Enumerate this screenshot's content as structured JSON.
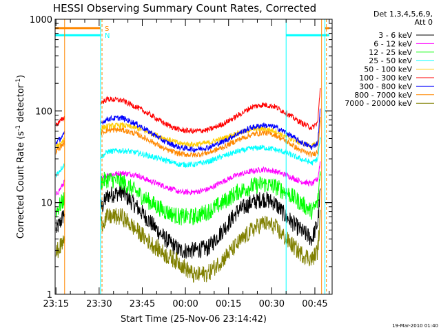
{
  "chart_data": {
    "type": "line",
    "title": "HESSI Observing Summary Count Rates, Corrected",
    "xlabel": "Start Time (25-Nov-06 23:14:42)",
    "ylabel": "Corrected Count Rate (s",
    "ylabel_sup1": "-1",
    "ylabel_mid": " detector",
    "ylabel_sup2": "-1",
    "ylabel_end": ")",
    "yscale": "log",
    "ylim": [
      1,
      1000
    ],
    "yticks": [
      {
        "v": 1,
        "label": "1"
      },
      {
        "v": 10,
        "label": "10"
      },
      {
        "v": 100,
        "label": "100"
      },
      {
        "v": 1000,
        "label": "1000"
      }
    ],
    "xlim": [
      "23:14:42",
      "00:51:00"
    ],
    "xticks": [
      "23:15",
      "23:30",
      "23:45",
      "00:00",
      "00:15",
      "00:30",
      "00:45"
    ],
    "legend_title": [
      "Det 1,3,4,5,6,9,",
      "Att 0"
    ],
    "legend_placement": "right",
    "series": [
      {
        "name": "3 - 6 keV",
        "color": "#000000",
        "points": [
          [
            "23:15",
            5
          ],
          [
            "23:17",
            6.5
          ],
          [
            "23:18",
            8
          ],
          [
            "23:31",
            9
          ],
          [
            "23:33",
            12
          ],
          [
            "23:38",
            13
          ],
          [
            "23:43",
            9
          ],
          [
            "23:48",
            6
          ],
          [
            "23:53",
            4
          ],
          [
            "23:58",
            3
          ],
          [
            "00:03",
            3
          ],
          [
            "00:08",
            3.2
          ],
          [
            "00:13",
            5
          ],
          [
            "00:18",
            8
          ],
          [
            "00:23",
            10
          ],
          [
            "00:27",
            11
          ],
          [
            "00:31",
            10
          ],
          [
            "00:35",
            7
          ],
          [
            "00:40",
            5
          ],
          [
            "00:44",
            4
          ],
          [
            "00:46",
            6
          ],
          [
            "00:47",
            15
          ]
        ]
      },
      {
        "name": "6 - 12 keV",
        "color": "#ff00ff",
        "points": [
          [
            "23:15",
            12
          ],
          [
            "23:17",
            15
          ],
          [
            "23:18",
            17
          ],
          [
            "23:31",
            18
          ],
          [
            "23:33",
            20
          ],
          [
            "23:38",
            21
          ],
          [
            "23:43",
            20
          ],
          [
            "23:48",
            17
          ],
          [
            "23:53",
            15
          ],
          [
            "23:58",
            13
          ],
          [
            "00:03",
            13
          ],
          [
            "00:08",
            14
          ],
          [
            "00:13",
            17
          ],
          [
            "00:18",
            20
          ],
          [
            "00:23",
            22
          ],
          [
            "00:27",
            23
          ],
          [
            "00:31",
            22
          ],
          [
            "00:35",
            20
          ],
          [
            "00:40",
            17
          ],
          [
            "00:44",
            16
          ],
          [
            "00:46",
            18
          ],
          [
            "00:47",
            30
          ]
        ]
      },
      {
        "name": "12 - 25 keV",
        "color": "#00ff00",
        "points": [
          [
            "23:15",
            8
          ],
          [
            "23:17",
            10
          ],
          [
            "23:18",
            11
          ],
          [
            "23:31",
            17
          ],
          [
            "23:33",
            18
          ],
          [
            "23:38",
            17
          ],
          [
            "23:43",
            13
          ],
          [
            "23:48",
            10
          ],
          [
            "23:53",
            8
          ],
          [
            "23:58",
            7
          ],
          [
            "00:03",
            7
          ],
          [
            "00:08",
            8
          ],
          [
            "00:13",
            10
          ],
          [
            "00:18",
            13
          ],
          [
            "00:23",
            15
          ],
          [
            "00:27",
            16
          ],
          [
            "00:31",
            15
          ],
          [
            "00:35",
            13
          ],
          [
            "00:40",
            10
          ],
          [
            "00:44",
            8
          ],
          [
            "00:46",
            10
          ],
          [
            "00:47",
            25
          ]
        ]
      },
      {
        "name": "25 - 50 keV",
        "color": "#00ffff",
        "points": [
          [
            "23:15",
            20
          ],
          [
            "23:17",
            24
          ],
          [
            "23:18",
            26
          ],
          [
            "23:31",
            32
          ],
          [
            "23:33",
            36
          ],
          [
            "23:38",
            37
          ],
          [
            "23:43",
            35
          ],
          [
            "23:48",
            32
          ],
          [
            "23:53",
            29
          ],
          [
            "23:58",
            26
          ],
          [
            "00:03",
            26
          ],
          [
            "00:08",
            28
          ],
          [
            "00:13",
            32
          ],
          [
            "00:18",
            36
          ],
          [
            "00:23",
            39
          ],
          [
            "00:27",
            40
          ],
          [
            "00:31",
            38
          ],
          [
            "00:35",
            35
          ],
          [
            "00:40",
            30
          ],
          [
            "00:44",
            27
          ],
          [
            "00:46",
            30
          ],
          [
            "00:47",
            55
          ]
        ]
      },
      {
        "name": "50 - 100 keV",
        "color": "#ffcc00",
        "points": [
          [
            "23:15",
            40
          ],
          [
            "23:17",
            46
          ],
          [
            "23:18",
            50
          ],
          [
            "23:31",
            65
          ],
          [
            "23:33",
            68
          ],
          [
            "23:38",
            70
          ],
          [
            "23:43",
            65
          ],
          [
            "23:48",
            57
          ],
          [
            "23:53",
            50
          ],
          [
            "23:58",
            44
          ],
          [
            "00:03",
            43
          ],
          [
            "00:08",
            45
          ],
          [
            "00:13",
            50
          ],
          [
            "00:18",
            57
          ],
          [
            "00:23",
            63
          ],
          [
            "00:27",
            64
          ],
          [
            "00:31",
            61
          ],
          [
            "00:35",
            52
          ],
          [
            "00:40",
            45
          ],
          [
            "00:44",
            41
          ],
          [
            "00:46",
            45
          ],
          [
            "00:47",
            85
          ]
        ]
      },
      {
        "name": "100 - 300 keV",
        "color": "#ff0000",
        "points": [
          [
            "23:15",
            70
          ],
          [
            "23:17",
            80
          ],
          [
            "23:18",
            85
          ],
          [
            "23:31",
            125
          ],
          [
            "23:33",
            135
          ],
          [
            "23:38",
            130
          ],
          [
            "23:43",
            110
          ],
          [
            "23:48",
            90
          ],
          [
            "23:53",
            72
          ],
          [
            "23:58",
            62
          ],
          [
            "00:03",
            60
          ],
          [
            "00:08",
            62
          ],
          [
            "00:13",
            72
          ],
          [
            "00:18",
            88
          ],
          [
            "00:23",
            110
          ],
          [
            "00:27",
            117
          ],
          [
            "00:31",
            112
          ],
          [
            "00:35",
            95
          ],
          [
            "00:40",
            75
          ],
          [
            "00:44",
            65
          ],
          [
            "00:46",
            75
          ],
          [
            "00:47",
            200
          ]
        ]
      },
      {
        "name": "300 - 800 keV",
        "color": "#0000ff",
        "points": [
          [
            "23:15",
            45
          ],
          [
            "23:17",
            52
          ],
          [
            "23:18",
            56
          ],
          [
            "23:31",
            75
          ],
          [
            "23:33",
            82
          ],
          [
            "23:38",
            84
          ],
          [
            "23:43",
            72
          ],
          [
            "23:48",
            58
          ],
          [
            "23:53",
            46
          ],
          [
            "23:58",
            40
          ],
          [
            "00:03",
            38
          ],
          [
            "00:08",
            40
          ],
          [
            "00:13",
            46
          ],
          [
            "00:18",
            56
          ],
          [
            "00:23",
            66
          ],
          [
            "00:27",
            70
          ],
          [
            "00:31",
            67
          ],
          [
            "00:35",
            58
          ],
          [
            "00:40",
            46
          ],
          [
            "00:44",
            40
          ],
          [
            "00:46",
            45
          ],
          [
            "00:47",
            120
          ]
        ]
      },
      {
        "name": "800 - 7000 keV",
        "color": "#ff8800",
        "points": [
          [
            "23:15",
            36
          ],
          [
            "23:17",
            42
          ],
          [
            "23:18",
            45
          ],
          [
            "23:31",
            58
          ],
          [
            "23:33",
            62
          ],
          [
            "23:38",
            62
          ],
          [
            "23:43",
            56
          ],
          [
            "23:48",
            47
          ],
          [
            "23:53",
            38
          ],
          [
            "23:58",
            34
          ],
          [
            "00:03",
            33
          ],
          [
            "00:08",
            35
          ],
          [
            "00:13",
            40
          ],
          [
            "00:18",
            48
          ],
          [
            "00:23",
            55
          ],
          [
            "00:27",
            58
          ],
          [
            "00:31",
            55
          ],
          [
            "00:35",
            47
          ],
          [
            "00:40",
            37
          ],
          [
            "00:44",
            33
          ],
          [
            "00:46",
            36
          ],
          [
            "00:47",
            95
          ]
        ]
      },
      {
        "name": "7000 - 20000 keV",
        "color": "#808000",
        "points": [
          [
            "23:15",
            2.8
          ],
          [
            "23:17",
            3.5
          ],
          [
            "23:18",
            4
          ],
          [
            "23:31",
            6
          ],
          [
            "23:33",
            7
          ],
          [
            "23:38",
            7
          ],
          [
            "23:43",
            5
          ],
          [
            "23:48",
            3.6
          ],
          [
            "23:53",
            2.7
          ],
          [
            "23:58",
            2.2
          ],
          [
            "00:03",
            1.6
          ],
          [
            "00:08",
            1.7
          ],
          [
            "00:13",
            2.4
          ],
          [
            "00:18",
            3.5
          ],
          [
            "00:23",
            5
          ],
          [
            "00:27",
            6
          ],
          [
            "00:31",
            5.5
          ],
          [
            "00:35",
            4
          ],
          [
            "00:40",
            2.8
          ],
          [
            "00:44",
            2.4
          ],
          [
            "00:46",
            3
          ],
          [
            "00:47",
            8
          ]
        ]
      }
    ],
    "flags": [
      {
        "label": "S",
        "color": "#ff8800",
        "value": 800,
        "segments": [
          [
            "23:14:42",
            "23:30:30"
          ],
          [
            "00:48:30",
            "00:50:00"
          ]
        ]
      },
      {
        "label": "N",
        "color": "#00ffff",
        "value": 670,
        "segments": [
          [
            "23:14:42",
            "23:30:30"
          ],
          [
            "00:35:00",
            "00:50:00"
          ]
        ]
      }
    ],
    "gaps": [
      [
        "23:18:00",
        "23:30:30"
      ]
    ],
    "vlines": [
      {
        "t": "23:18:00",
        "color": "#ff8800",
        "dashed": false
      },
      {
        "t": "23:30:30",
        "color": "#00ffff",
        "dashed": false
      },
      {
        "t": "23:31:00",
        "color": "#ff8800",
        "dashed": true
      },
      {
        "t": "00:35:00",
        "color": "#00ffff",
        "dashed": false
      },
      {
        "t": "00:47:20",
        "color": "#ff8800",
        "dashed": false
      },
      {
        "t": "00:48:30",
        "color": "#00ffff",
        "dashed": false
      },
      {
        "t": "00:49:00",
        "color": "#ff8800",
        "dashed": true
      }
    ],
    "timestamp": "19-Mar-2010 01:40"
  }
}
